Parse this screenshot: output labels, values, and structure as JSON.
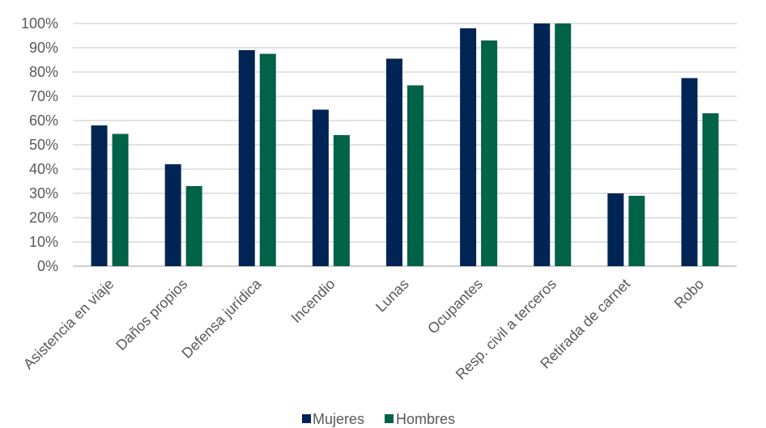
{
  "chart_data": {
    "type": "bar",
    "categories": [
      "Asistencia en viaje",
      "Daños propios",
      "Defensa jurídica",
      "Incendio",
      "Lunas",
      "Ocupantes",
      "Resp. civil a terceros",
      "Retirada de carnet",
      "Robo"
    ],
    "series": [
      {
        "name": "Mujeres",
        "color": "#002554",
        "values": [
          58,
          42,
          89,
          64.5,
          85.5,
          98,
          100,
          30,
          77.5
        ]
      },
      {
        "name": "Hombres",
        "color": "#006247",
        "values": [
          54.5,
          33,
          87.5,
          54,
          74.5,
          93,
          100,
          29,
          63
        ]
      }
    ],
    "y_ticks": [
      "0%",
      "10%",
      "20%",
      "30%",
      "40%",
      "50%",
      "60%",
      "70%",
      "80%",
      "90%",
      "100%"
    ],
    "ylim": [
      0,
      100
    ],
    "grid": true,
    "legend": "bottom",
    "title": "",
    "xlabel": "",
    "ylabel": ""
  }
}
